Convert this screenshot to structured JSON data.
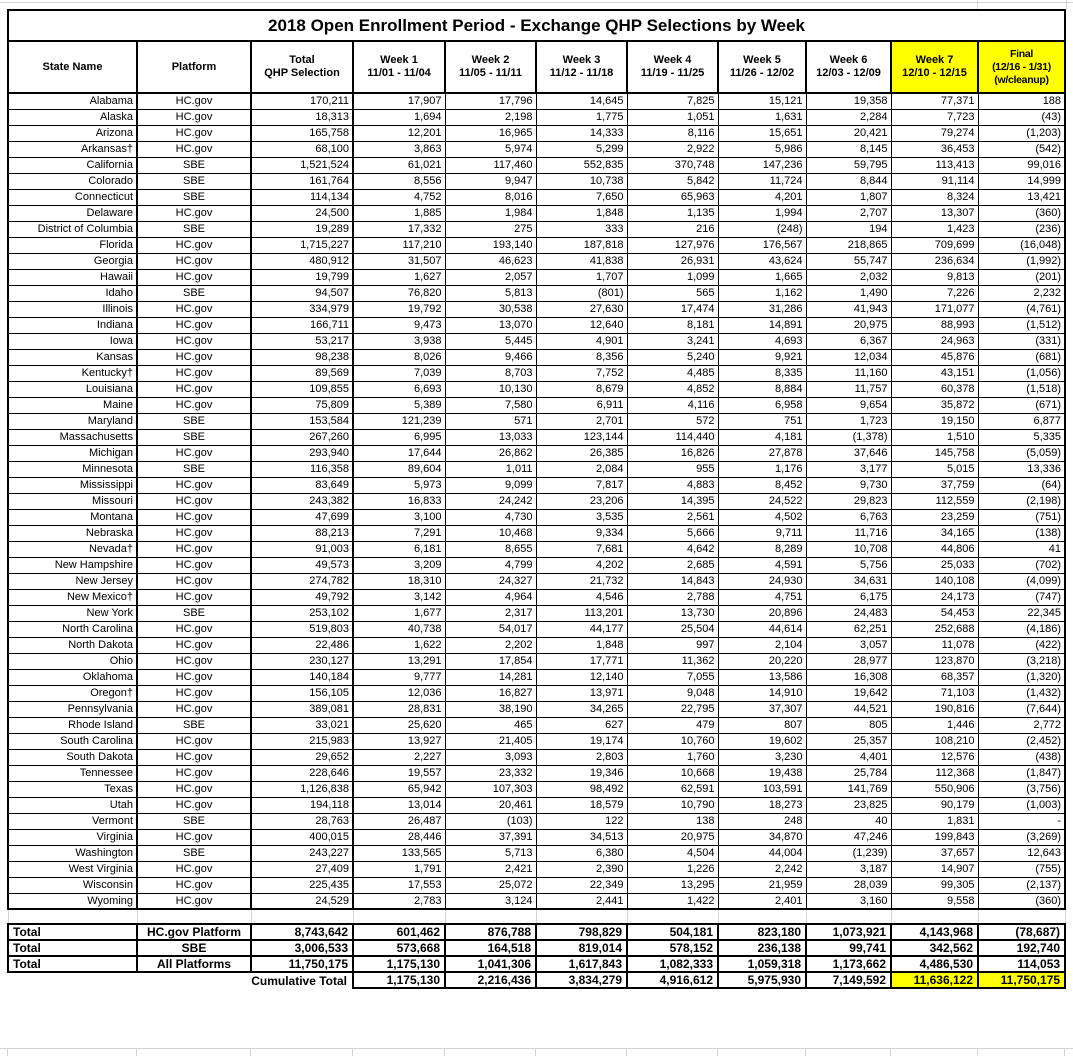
{
  "table_title": "2018 Open Enrollment Period - Exchange QHP Selections by Week",
  "colors": {
    "highlight": "#ffff00",
    "border": "#000000",
    "gridline": "#d4d4d4",
    "background": "#ffffff"
  },
  "columns": [
    {
      "lines": [
        "State Name"
      ],
      "highlight": false
    },
    {
      "lines": [
        "Platform"
      ],
      "highlight": false
    },
    {
      "lines": [
        "Total",
        "QHP Selection"
      ],
      "highlight": false
    },
    {
      "lines": [
        "Week 1",
        "11/01 - 11/04"
      ],
      "highlight": false
    },
    {
      "lines": [
        "Week 2",
        "11/05 - 11/11"
      ],
      "highlight": false
    },
    {
      "lines": [
        "Week 3",
        "11/12 - 11/18"
      ],
      "highlight": false
    },
    {
      "lines": [
        "Week 4",
        "11/19 - 11/25"
      ],
      "highlight": false
    },
    {
      "lines": [
        "Week 5",
        "11/26 - 12/02"
      ],
      "highlight": false
    },
    {
      "lines": [
        "Week 6",
        "12/03 - 12/09"
      ],
      "highlight": false
    },
    {
      "lines": [
        "Week 7",
        "12/10 - 12/15"
      ],
      "highlight": true
    },
    {
      "lines": [
        "Final",
        "(12/16 - 1/31)",
        "(w/cleanup)"
      ],
      "highlight": true
    }
  ],
  "rows": [
    [
      "Alabama",
      "HC.gov",
      "170,211",
      "17,907",
      "17,796",
      "14,645",
      "7,825",
      "15,121",
      "19,358",
      "77,371",
      "188"
    ],
    [
      "Alaska",
      "HC.gov",
      "18,313",
      "1,694",
      "2,198",
      "1,775",
      "1,051",
      "1,631",
      "2,284",
      "7,723",
      "(43)"
    ],
    [
      "Arizona",
      "HC.gov",
      "165,758",
      "12,201",
      "16,965",
      "14,333",
      "8,116",
      "15,651",
      "20,421",
      "79,274",
      "(1,203)"
    ],
    [
      "Arkansas†",
      "HC.gov",
      "68,100",
      "3,863",
      "5,974",
      "5,299",
      "2,922",
      "5,986",
      "8,145",
      "36,453",
      "(542)"
    ],
    [
      "California",
      "SBE",
      "1,521,524",
      "61,021",
      "117,460",
      "552,835",
      "370,748",
      "147,236",
      "59,795",
      "113,413",
      "99,016"
    ],
    [
      "Colorado",
      "SBE",
      "161,764",
      "8,556",
      "9,947",
      "10,738",
      "5,842",
      "11,724",
      "8,844",
      "91,114",
      "14,999"
    ],
    [
      "Connecticut",
      "SBE",
      "114,134",
      "4,752",
      "8,016",
      "7,650",
      "65,963",
      "4,201",
      "1,807",
      "8,324",
      "13,421"
    ],
    [
      "Delaware",
      "HC.gov",
      "24,500",
      "1,885",
      "1,984",
      "1,848",
      "1,135",
      "1,994",
      "2,707",
      "13,307",
      "(360)"
    ],
    [
      "District of Columbia",
      "SBE",
      "19,289",
      "17,332",
      "275",
      "333",
      "216",
      "(248)",
      "194",
      "1,423",
      "(236)"
    ],
    [
      "Florida",
      "HC.gov",
      "1,715,227",
      "117,210",
      "193,140",
      "187,818",
      "127,976",
      "176,567",
      "218,865",
      "709,699",
      "(16,048)"
    ],
    [
      "Georgia",
      "HC.gov",
      "480,912",
      "31,507",
      "46,623",
      "41,838",
      "26,931",
      "43,624",
      "55,747",
      "236,634",
      "(1,992)"
    ],
    [
      "Hawaii",
      "HC.gov",
      "19,799",
      "1,627",
      "2,057",
      "1,707",
      "1,099",
      "1,665",
      "2,032",
      "9,813",
      "(201)"
    ],
    [
      "Idaho",
      "SBE",
      "94,507",
      "76,820",
      "5,813",
      "(801)",
      "565",
      "1,162",
      "1,490",
      "7,226",
      "2,232"
    ],
    [
      "Illinois",
      "HC.gov",
      "334,979",
      "19,792",
      "30,538",
      "27,630",
      "17,474",
      "31,286",
      "41,943",
      "171,077",
      "(4,761)"
    ],
    [
      "Indiana",
      "HC.gov",
      "166,711",
      "9,473",
      "13,070",
      "12,640",
      "8,181",
      "14,891",
      "20,975",
      "88,993",
      "(1,512)"
    ],
    [
      "Iowa",
      "HC.gov",
      "53,217",
      "3,938",
      "5,445",
      "4,901",
      "3,241",
      "4,693",
      "6,367",
      "24,963",
      "(331)"
    ],
    [
      "Kansas",
      "HC.gov",
      "98,238",
      "8,026",
      "9,466",
      "8,356",
      "5,240",
      "9,921",
      "12,034",
      "45,876",
      "(681)"
    ],
    [
      "Kentucky†",
      "HC.gov",
      "89,569",
      "7,039",
      "8,703",
      "7,752",
      "4,485",
      "8,335",
      "11,160",
      "43,151",
      "(1,056)"
    ],
    [
      "Louisiana",
      "HC.gov",
      "109,855",
      "6,693",
      "10,130",
      "8,679",
      "4,852",
      "8,884",
      "11,757",
      "60,378",
      "(1,518)"
    ],
    [
      "Maine",
      "HC.gov",
      "75,809",
      "5,389",
      "7,580",
      "6,911",
      "4,116",
      "6,958",
      "9,654",
      "35,872",
      "(671)"
    ],
    [
      "Maryland",
      "SBE",
      "153,584",
      "121,239",
      "571",
      "2,701",
      "572",
      "751",
      "1,723",
      "19,150",
      "6,877"
    ],
    [
      "Massachusetts",
      "SBE",
      "267,260",
      "6,995",
      "13,033",
      "123,144",
      "114,440",
      "4,181",
      "(1,378)",
      "1,510",
      "5,335"
    ],
    [
      "Michigan",
      "HC.gov",
      "293,940",
      "17,644",
      "26,862",
      "26,385",
      "16,826",
      "27,878",
      "37,646",
      "145,758",
      "(5,059)"
    ],
    [
      "Minnesota",
      "SBE",
      "116,358",
      "89,604",
      "1,011",
      "2,084",
      "955",
      "1,176",
      "3,177",
      "5,015",
      "13,336"
    ],
    [
      "Mississippi",
      "HC.gov",
      "83,649",
      "5,973",
      "9,099",
      "7,817",
      "4,883",
      "8,452",
      "9,730",
      "37,759",
      "(64)"
    ],
    [
      "Missouri",
      "HC.gov",
      "243,382",
      "16,833",
      "24,242",
      "23,206",
      "14,395",
      "24,522",
      "29,823",
      "112,559",
      "(2,198)"
    ],
    [
      "Montana",
      "HC.gov",
      "47,699",
      "3,100",
      "4,730",
      "3,535",
      "2,561",
      "4,502",
      "6,763",
      "23,259",
      "(751)"
    ],
    [
      "Nebraska",
      "HC.gov",
      "88,213",
      "7,291",
      "10,468",
      "9,334",
      "5,666",
      "9,711",
      "11,716",
      "34,165",
      "(138)"
    ],
    [
      "Nevada†",
      "HC.gov",
      "91,003",
      "6,181",
      "8,655",
      "7,681",
      "4,642",
      "8,289",
      "10,708",
      "44,806",
      "41"
    ],
    [
      "New Hampshire",
      "HC.gov",
      "49,573",
      "3,209",
      "4,799",
      "4,202",
      "2,685",
      "4,591",
      "5,756",
      "25,033",
      "(702)"
    ],
    [
      "New Jersey",
      "HC.gov",
      "274,782",
      "18,310",
      "24,327",
      "21,732",
      "14,843",
      "24,930",
      "34,631",
      "140,108",
      "(4,099)"
    ],
    [
      "New Mexico†",
      "HC.gov",
      "49,792",
      "3,142",
      "4,964",
      "4,546",
      "2,788",
      "4,751",
      "6,175",
      "24,173",
      "(747)"
    ],
    [
      "New York",
      "SBE",
      "253,102",
      "1,677",
      "2,317",
      "113,201",
      "13,730",
      "20,896",
      "24,483",
      "54,453",
      "22,345"
    ],
    [
      "North Carolina",
      "HC.gov",
      "519,803",
      "40,738",
      "54,017",
      "44,177",
      "25,504",
      "44,614",
      "62,251",
      "252,688",
      "(4,186)"
    ],
    [
      "North Dakota",
      "HC.gov",
      "22,486",
      "1,622",
      "2,202",
      "1,848",
      "997",
      "2,104",
      "3,057",
      "11,078",
      "(422)"
    ],
    [
      "Ohio",
      "HC.gov",
      "230,127",
      "13,291",
      "17,854",
      "17,771",
      "11,362",
      "20,220",
      "28,977",
      "123,870",
      "(3,218)"
    ],
    [
      "Oklahoma",
      "HC.gov",
      "140,184",
      "9,777",
      "14,281",
      "12,140",
      "7,055",
      "13,586",
      "16,308",
      "68,357",
      "(1,320)"
    ],
    [
      "Oregon†",
      "HC.gov",
      "156,105",
      "12,036",
      "16,827",
      "13,971",
      "9,048",
      "14,910",
      "19,642",
      "71,103",
      "(1,432)"
    ],
    [
      "Pennsylvania",
      "HC.gov",
      "389,081",
      "28,831",
      "38,190",
      "34,265",
      "22,795",
      "37,307",
      "44,521",
      "190,816",
      "(7,644)"
    ],
    [
      "Rhode Island",
      "SBE",
      "33,021",
      "25,620",
      "465",
      "627",
      "479",
      "807",
      "805",
      "1,446",
      "2,772"
    ],
    [
      "South Carolina",
      "HC.gov",
      "215,983",
      "13,927",
      "21,405",
      "19,174",
      "10,760",
      "19,602",
      "25,357",
      "108,210",
      "(2,452)"
    ],
    [
      "South Dakota",
      "HC.gov",
      "29,652",
      "2,227",
      "3,093",
      "2,803",
      "1,760",
      "3,230",
      "4,401",
      "12,576",
      "(438)"
    ],
    [
      "Tennessee",
      "HC.gov",
      "228,646",
      "19,557",
      "23,332",
      "19,346",
      "10,668",
      "19,438",
      "25,784",
      "112,368",
      "(1,847)"
    ],
    [
      "Texas",
      "HC.gov",
      "1,126,838",
      "65,942",
      "107,303",
      "98,492",
      "62,591",
      "103,591",
      "141,769",
      "550,906",
      "(3,756)"
    ],
    [
      "Utah",
      "HC.gov",
      "194,118",
      "13,014",
      "20,461",
      "18,579",
      "10,790",
      "18,273",
      "23,825",
      "90,179",
      "(1,003)"
    ],
    [
      "Vermont",
      "SBE",
      "28,763",
      "26,487",
      "(103)",
      "122",
      "138",
      "248",
      "40",
      "1,831",
      "-"
    ],
    [
      "Virginia",
      "HC.gov",
      "400,015",
      "28,446",
      "37,391",
      "34,513",
      "20,975",
      "34,870",
      "47,246",
      "199,843",
      "(3,269)"
    ],
    [
      "Washington",
      "SBE",
      "243,227",
      "133,565",
      "5,713",
      "6,380",
      "4,504",
      "44,004",
      "(1,239)",
      "37,657",
      "12,643"
    ],
    [
      "West Virginia",
      "HC.gov",
      "27,409",
      "1,791",
      "2,421",
      "2,390",
      "1,226",
      "2,242",
      "3,187",
      "14,907",
      "(755)"
    ],
    [
      "Wisconsin",
      "HC.gov",
      "225,435",
      "17,553",
      "25,072",
      "22,349",
      "13,295",
      "21,959",
      "28,039",
      "99,305",
      "(2,137)"
    ],
    [
      "Wyoming",
      "HC.gov",
      "24,529",
      "2,783",
      "3,124",
      "2,441",
      "1,422",
      "2,401",
      "3,160",
      "9,558",
      "(360)"
    ]
  ],
  "totals": [
    {
      "label": "Total",
      "platform": "HC.gov Platform",
      "values": [
        "8,743,642",
        "601,462",
        "876,788",
        "798,829",
        "504,181",
        "823,180",
        "1,073,921",
        "4,143,968",
        "(78,687)"
      ]
    },
    {
      "label": "Total",
      "platform": "SBE",
      "values": [
        "3,006,533",
        "573,668",
        "164,518",
        "819,014",
        "578,152",
        "236,138",
        "99,741",
        "342,562",
        "192,740"
      ]
    },
    {
      "label": "Total",
      "platform": "All Platforms",
      "values": [
        "11,750,175",
        "1,175,130",
        "1,041,306",
        "1,617,843",
        "1,082,333",
        "1,059,318",
        "1,173,662",
        "4,486,530",
        "114,053"
      ]
    }
  ],
  "cumulative": {
    "label": "Cumulative Total",
    "values": [
      "1,175,130",
      "2,216,436",
      "3,834,279",
      "4,916,612",
      "5,975,930",
      "7,149,592",
      "11,636,122",
      "11,750,175"
    ],
    "highlighted_values": [
      "11,636,122",
      "11,750,175"
    ]
  }
}
